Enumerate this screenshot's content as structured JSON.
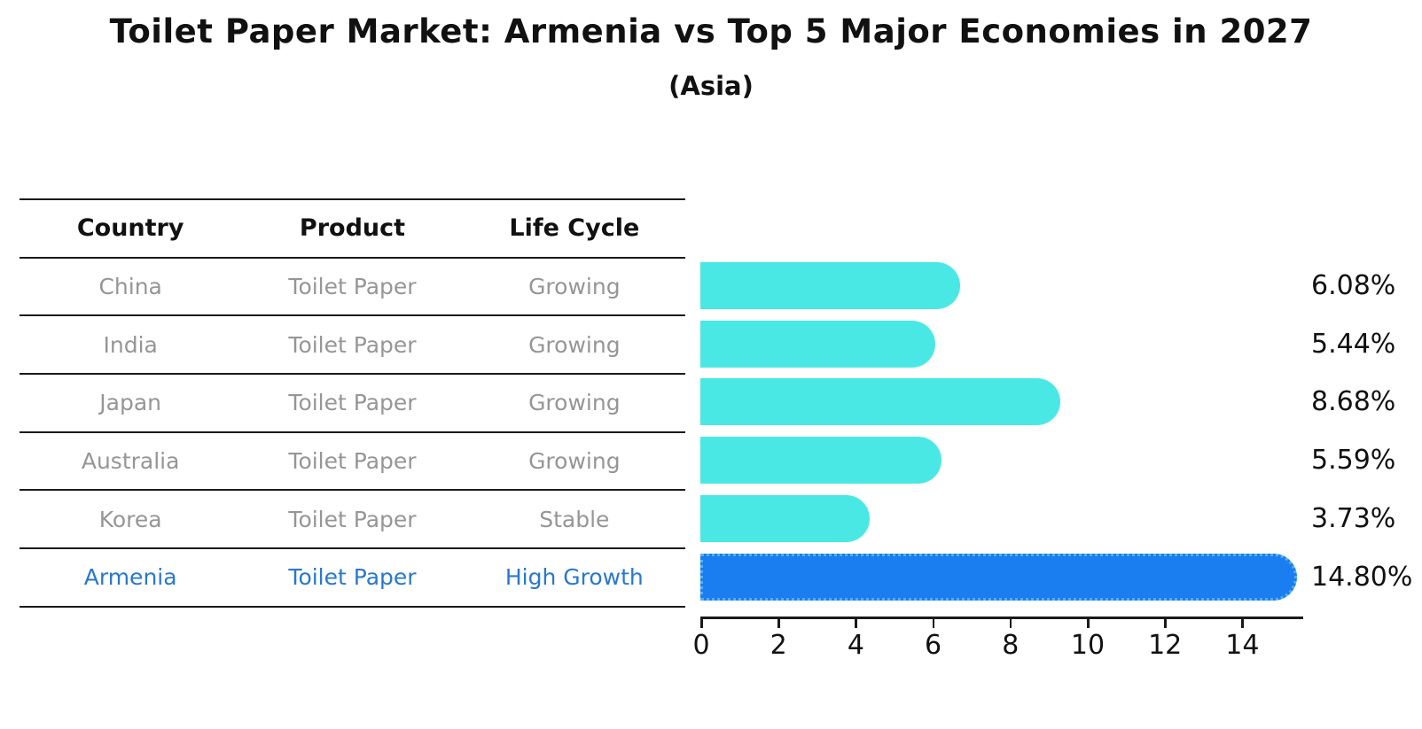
{
  "title": "Toilet Paper Market: Armenia vs Top 5 Major Economies in 2027",
  "subtitle": "(Asia)",
  "table": {
    "headers": [
      "Country",
      "Product",
      "Life Cycle"
    ],
    "rows": [
      {
        "country": "China",
        "product": "Toilet Paper",
        "life_cycle": "Growing",
        "highlight": false
      },
      {
        "country": "India",
        "product": "Toilet Paper",
        "life_cycle": "Growing",
        "highlight": false
      },
      {
        "country": "Japan",
        "product": "Toilet Paper",
        "life_cycle": "Growing",
        "highlight": false
      },
      {
        "country": "Australia",
        "product": "Toilet Paper",
        "life_cycle": "Growing",
        "highlight": false
      },
      {
        "country": "Korea",
        "product": "Toilet Paper",
        "life_cycle": "Stable",
        "highlight": false
      },
      {
        "country": "Armenia",
        "product": "Toilet Paper",
        "life_cycle": "High Growth",
        "highlight": true
      }
    ]
  },
  "chart_data": {
    "type": "bar",
    "orientation": "horizontal",
    "title": "Toilet Paper Market: Armenia vs Top 5 Major Economies in 2027",
    "subtitle": "(Asia)",
    "categories": [
      "China",
      "India",
      "Japan",
      "Australia",
      "Korea",
      "Armenia"
    ],
    "values": [
      6.08,
      5.44,
      8.68,
      5.59,
      3.73,
      14.8
    ],
    "value_labels": [
      "6.08%",
      "5.44%",
      "8.68%",
      "5.59%",
      "3.73%",
      "14.80%"
    ],
    "x_ticks": [
      0,
      2,
      4,
      6,
      8,
      10,
      12,
      14
    ],
    "xlim": [
      0,
      15.6
    ],
    "grid": false,
    "legend": false,
    "bar_color": "#4AE8E5",
    "highlight_index": 5,
    "highlight_color": "#1A7DF0",
    "highlight_border_color": "#56AEF5"
  },
  "colors": {
    "header_text": "#111111",
    "row_text": "#969696",
    "highlight_text": "#2878D0",
    "line": "#1A1A1A"
  }
}
